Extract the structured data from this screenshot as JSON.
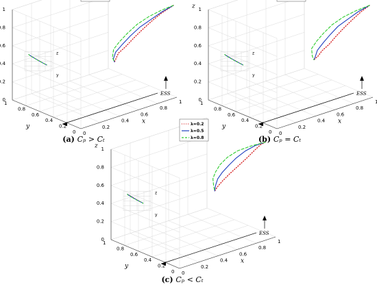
{
  "chart_data": [
    {
      "type": "line3d",
      "caption_label": "(a)",
      "caption_math": "C_p > C_t",
      "axis_labels": {
        "x": "x",
        "y": "y",
        "z": "z"
      },
      "xlim": [
        0,
        1
      ],
      "ylim": [
        0,
        1
      ],
      "zlim": [
        0,
        1
      ],
      "x_ticks": [
        "0",
        "0.2",
        "0.4",
        "0.6",
        "0.8",
        "1"
      ],
      "y_ticks": [
        "1",
        "0.8",
        "0.6",
        "0.4",
        "0.2",
        "0"
      ],
      "z_ticks": [
        "0",
        "0.2",
        "0.4",
        "0.6",
        "0.8",
        "1"
      ],
      "legend": {
        "position": "top-right",
        "entries": [
          "λ=0.2",
          "λ=0.5",
          "λ=0.8"
        ]
      },
      "annotation": "ESS",
      "inset_labels": {
        "z": "z",
        "y": "y"
      },
      "series": [
        {
          "name": "λ=0.2",
          "style": "dotted",
          "color": "#d62728",
          "x": [
            1.0,
            0.93,
            0.88,
            0.85,
            0.83,
            0.82,
            0.82,
            0.83,
            0.85
          ],
          "y": [
            0.05,
            0.12,
            0.2,
            0.3,
            0.4,
            0.5,
            0.6,
            0.65,
            0.7
          ],
          "z": [
            1.0,
            0.92,
            0.82,
            0.7,
            0.58,
            0.46,
            0.36,
            0.28,
            0.22
          ]
        },
        {
          "name": "λ=0.5",
          "style": "solid",
          "color": "#1f3fbf",
          "x": [
            1.0,
            0.93,
            0.87,
            0.83,
            0.8,
            0.79,
            0.79,
            0.81,
            0.85
          ],
          "y": [
            0.05,
            0.12,
            0.2,
            0.3,
            0.4,
            0.5,
            0.6,
            0.66,
            0.7
          ],
          "z": [
            1.0,
            0.93,
            0.84,
            0.74,
            0.62,
            0.5,
            0.38,
            0.28,
            0.22
          ]
        },
        {
          "name": "λ=0.8",
          "style": "dashed",
          "color": "#2ecc2e",
          "x": [
            1.0,
            0.92,
            0.85,
            0.8,
            0.77,
            0.76,
            0.77,
            0.8,
            0.85
          ],
          "y": [
            0.05,
            0.12,
            0.2,
            0.3,
            0.4,
            0.5,
            0.6,
            0.66,
            0.7
          ],
          "z": [
            1.0,
            0.95,
            0.88,
            0.78,
            0.66,
            0.54,
            0.42,
            0.3,
            0.22
          ]
        }
      ]
    },
    {
      "type": "line3d",
      "caption_label": "(b)",
      "caption_math": "C_p = C_t",
      "axis_labels": {
        "x": "x",
        "y": "y",
        "z": "z"
      },
      "xlim": [
        0,
        1
      ],
      "ylim": [
        0,
        1
      ],
      "zlim": [
        0,
        1
      ],
      "x_ticks": [
        "0",
        "0.2",
        "0.4",
        "0.6",
        "0.8",
        "1"
      ],
      "y_ticks": [
        "1",
        "0.8",
        "0.6",
        "0.4",
        "0.2",
        "0"
      ],
      "z_ticks": [
        "0",
        "0.2",
        "0.4",
        "0.6",
        "0.8",
        "1"
      ],
      "legend": {
        "position": "top-right",
        "entries": [
          "λ=0.2",
          "λ=0.5",
          "λ=0.8"
        ]
      },
      "annotation": "ESS",
      "inset_labels": {
        "z": "z",
        "y": "y"
      },
      "series": [
        {
          "name": "λ=0.2",
          "style": "dotted",
          "color": "#d62728",
          "x": [
            1.0,
            0.96,
            0.93,
            0.91,
            0.9,
            0.9,
            0.9,
            0.9,
            0.9
          ],
          "y": [
            0.05,
            0.12,
            0.2,
            0.3,
            0.4,
            0.5,
            0.6,
            0.66,
            0.72
          ],
          "z": [
            1.0,
            0.92,
            0.82,
            0.7,
            0.58,
            0.46,
            0.36,
            0.28,
            0.22
          ]
        },
        {
          "name": "λ=0.5",
          "style": "solid",
          "color": "#1f3fbf",
          "x": [
            1.0,
            0.93,
            0.88,
            0.85,
            0.84,
            0.84,
            0.85,
            0.87,
            0.9
          ],
          "y": [
            0.05,
            0.12,
            0.2,
            0.3,
            0.4,
            0.5,
            0.6,
            0.66,
            0.72
          ],
          "z": [
            1.0,
            0.93,
            0.84,
            0.74,
            0.62,
            0.5,
            0.38,
            0.28,
            0.22
          ]
        },
        {
          "name": "λ=0.8",
          "style": "dashed",
          "color": "#2ecc2e",
          "x": [
            1.0,
            0.9,
            0.83,
            0.79,
            0.77,
            0.77,
            0.79,
            0.84,
            0.9
          ],
          "y": [
            0.05,
            0.12,
            0.2,
            0.3,
            0.4,
            0.5,
            0.6,
            0.66,
            0.72
          ],
          "z": [
            1.0,
            0.95,
            0.88,
            0.78,
            0.66,
            0.54,
            0.42,
            0.3,
            0.22
          ]
        }
      ]
    },
    {
      "type": "line3d",
      "caption_label": "(c)",
      "caption_math": "C_p < C_t",
      "axis_labels": {
        "x": "x",
        "y": "y",
        "z": "z"
      },
      "xlim": [
        0,
        1
      ],
      "ylim": [
        0,
        1
      ],
      "zlim": [
        0,
        1
      ],
      "x_ticks": [
        "0",
        "0.2",
        "0.4",
        "0.6",
        "0.8",
        "1"
      ],
      "y_ticks": [
        "1",
        "0.8",
        "0.6",
        "0.4",
        "0.2",
        "0"
      ],
      "z_ticks": [
        "0",
        "0.2",
        "0.4",
        "0.6",
        "0.8",
        "1"
      ],
      "legend": {
        "position": "top-right",
        "entries": [
          "λ=0.2",
          "λ=0.5",
          "λ=0.8"
        ]
      },
      "annotation": "ESS",
      "inset_labels": {
        "z": "z",
        "y": "y"
      },
      "series": [
        {
          "name": "λ=0.2",
          "style": "dotted",
          "color": "#d62728",
          "x": [
            1.0,
            1.0,
            0.99,
            0.97,
            0.94,
            0.91,
            0.89,
            0.88,
            0.88
          ],
          "y": [
            0.15,
            0.22,
            0.3,
            0.38,
            0.46,
            0.54,
            0.62,
            0.68,
            0.72
          ],
          "z": [
            1.0,
            0.95,
            0.86,
            0.76,
            0.66,
            0.56,
            0.46,
            0.38,
            0.32
          ]
        },
        {
          "name": "λ=0.5",
          "style": "solid",
          "color": "#1f3fbf",
          "x": [
            1.0,
            0.95,
            0.9,
            0.86,
            0.84,
            0.83,
            0.84,
            0.86,
            0.88
          ],
          "y": [
            0.15,
            0.22,
            0.3,
            0.38,
            0.46,
            0.54,
            0.62,
            0.68,
            0.72
          ],
          "z": [
            1.0,
            0.96,
            0.89,
            0.8,
            0.7,
            0.6,
            0.5,
            0.4,
            0.32
          ]
        },
        {
          "name": "λ=0.8",
          "style": "dashed",
          "color": "#2ecc2e",
          "x": [
            1.0,
            0.9,
            0.82,
            0.77,
            0.75,
            0.76,
            0.79,
            0.84,
            0.88
          ],
          "y": [
            0.15,
            0.22,
            0.3,
            0.38,
            0.46,
            0.54,
            0.62,
            0.68,
            0.72
          ],
          "z": [
            1.0,
            0.97,
            0.92,
            0.84,
            0.74,
            0.63,
            0.52,
            0.41,
            0.32
          ]
        }
      ]
    }
  ]
}
